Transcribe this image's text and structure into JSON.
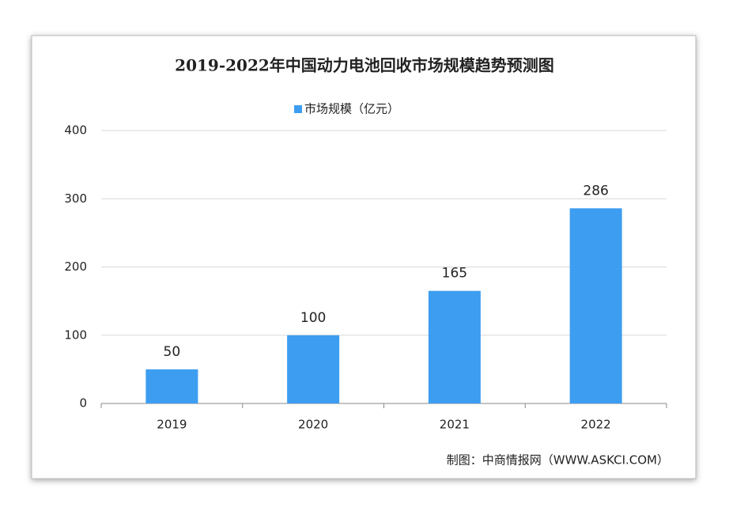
{
  "chart_data": {
    "type": "bar",
    "title": "2019-2022年中国动力电池回收市场规模趋势预测图",
    "source": "制图：中商情报网（WWW.ASKCI.COM）",
    "categories": [
      "2019",
      "2020",
      "2021",
      "2022"
    ],
    "series": [
      {
        "name": "市场规模（亿元）",
        "color": "#3d9df0",
        "values": [
          50,
          100,
          165,
          286
        ]
      }
    ],
    "ylim": [
      0,
      400
    ],
    "yticks": [
      0,
      100,
      200,
      300,
      400
    ],
    "grid": true,
    "legend": "top"
  }
}
